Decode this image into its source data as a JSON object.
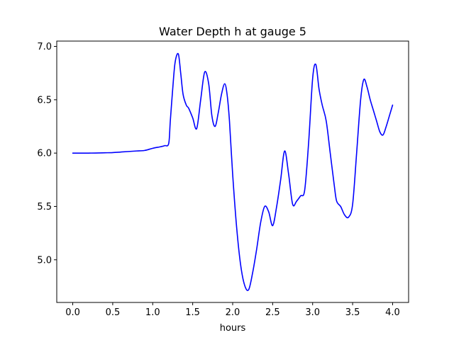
{
  "chart_data": {
    "type": "line",
    "title": "Water Depth h at gauge 5",
    "xlabel": "hours",
    "ylabel": "",
    "xlim": [
      -0.2,
      4.2
    ],
    "ylim": [
      4.6,
      7.05
    ],
    "grid": false,
    "legend": "none",
    "x_ticks": [
      0.0,
      0.5,
      1.0,
      1.5,
      2.0,
      2.5,
      3.0,
      3.5,
      4.0
    ],
    "x_tick_labels": [
      "0.0",
      "0.5",
      "1.0",
      "1.5",
      "2.0",
      "2.5",
      "3.0",
      "3.5",
      "4.0"
    ],
    "y_ticks": [
      5.0,
      5.5,
      6.0,
      6.5,
      7.0
    ],
    "y_tick_labels": [
      "5.0",
      "5.5",
      "6.0",
      "6.5",
      "7.0"
    ],
    "series": [
      {
        "color": "#0000ff",
        "x": [
          0.0,
          0.2,
          0.4,
          0.5,
          0.6,
          0.7,
          0.8,
          0.9,
          1.0,
          1.1,
          1.15,
          1.2,
          1.22,
          1.25,
          1.28,
          1.32,
          1.35,
          1.38,
          1.42,
          1.45,
          1.5,
          1.55,
          1.6,
          1.65,
          1.7,
          1.74,
          1.78,
          1.82,
          1.86,
          1.9,
          1.93,
          1.96,
          2.0,
          2.05,
          2.1,
          2.15,
          2.2,
          2.25,
          2.3,
          2.35,
          2.4,
          2.45,
          2.5,
          2.55,
          2.6,
          2.65,
          2.7,
          2.75,
          2.8,
          2.85,
          2.9,
          2.95,
          3.0,
          3.04,
          3.08,
          3.12,
          3.17,
          3.22,
          3.27,
          3.3,
          3.35,
          3.4,
          3.45,
          3.5,
          3.55,
          3.6,
          3.64,
          3.68,
          3.72,
          3.76,
          3.8,
          3.84,
          3.88,
          3.92,
          3.96,
          4.0
        ],
        "y": [
          6.0,
          6.0,
          6.003,
          6.005,
          6.01,
          6.015,
          6.02,
          6.025,
          6.045,
          6.06,
          6.07,
          6.09,
          6.3,
          6.6,
          6.85,
          6.93,
          6.75,
          6.55,
          6.45,
          6.42,
          6.33,
          6.23,
          6.5,
          6.76,
          6.65,
          6.35,
          6.25,
          6.38,
          6.55,
          6.65,
          6.55,
          6.3,
          5.8,
          5.3,
          4.95,
          4.76,
          4.72,
          4.88,
          5.1,
          5.35,
          5.5,
          5.45,
          5.32,
          5.5,
          5.75,
          6.02,
          5.8,
          5.52,
          5.55,
          5.6,
          5.65,
          6.1,
          6.7,
          6.83,
          6.6,
          6.45,
          6.3,
          6.0,
          5.7,
          5.55,
          5.5,
          5.42,
          5.4,
          5.52,
          6.0,
          6.5,
          6.69,
          6.62,
          6.5,
          6.4,
          6.3,
          6.2,
          6.17,
          6.25,
          6.35,
          6.45
        ]
      }
    ]
  }
}
